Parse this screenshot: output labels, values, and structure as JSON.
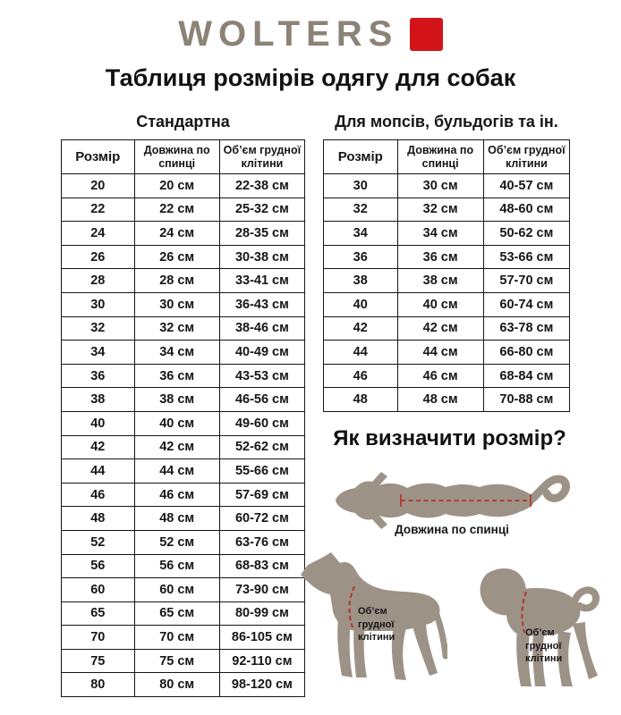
{
  "brand": {
    "name": "WOLTERS"
  },
  "page_title": "Таблиця розмірів одягу для собак",
  "standard_table": {
    "title": "Стандартна",
    "headers": [
      "Розмір",
      "Довжина по спинці",
      "Об’єм грудної клітини"
    ],
    "rows": [
      [
        "20",
        "20 см",
        "22-38 см"
      ],
      [
        "22",
        "22 см",
        "25-32 см"
      ],
      [
        "24",
        "24 см",
        "28-35 см"
      ],
      [
        "26",
        "26 см",
        "30-38 см"
      ],
      [
        "28",
        "28 см",
        "33-41 см"
      ],
      [
        "30",
        "30 см",
        "36-43 см"
      ],
      [
        "32",
        "32 см",
        "38-46 см"
      ],
      [
        "34",
        "34 см",
        "40-49 см"
      ],
      [
        "36",
        "36 см",
        "43-53 см"
      ],
      [
        "38",
        "38 см",
        "46-56 см"
      ],
      [
        "40",
        "40 см",
        "49-60 см"
      ],
      [
        "42",
        "42 см",
        "52-62 см"
      ],
      [
        "44",
        "44 см",
        "55-66 см"
      ],
      [
        "46",
        "46 см",
        "57-69 см"
      ],
      [
        "48",
        "48 см",
        "60-72 см"
      ],
      [
        "52",
        "52 см",
        "63-76 см"
      ],
      [
        "56",
        "56 см",
        "68-83 см"
      ],
      [
        "60",
        "60 см",
        "73-90 см"
      ],
      [
        "65",
        "65 см",
        "80-99 см"
      ],
      [
        "70",
        "70 см",
        "86-105 см"
      ],
      [
        "75",
        "75 см",
        "92-110 см"
      ],
      [
        "80",
        "80 см",
        "98-120 см"
      ]
    ]
  },
  "pug_table": {
    "title": "Для мопсів, бульдогів та ін.",
    "headers": [
      "Розмір",
      "Довжина по спинці",
      "Об’єм грудної клітини"
    ],
    "rows": [
      [
        "30",
        "30 см",
        "40-57 см"
      ],
      [
        "32",
        "32 см",
        "48-60 см"
      ],
      [
        "34",
        "34 см",
        "50-62 см"
      ],
      [
        "36",
        "36 см",
        "53-66 см"
      ],
      [
        "38",
        "38 см",
        "57-70 см"
      ],
      [
        "40",
        "40 см",
        "60-74 см"
      ],
      [
        "42",
        "42 см",
        "63-78 см"
      ],
      [
        "44",
        "44 см",
        "66-80 см"
      ],
      [
        "46",
        "46 см",
        "68-84 см"
      ],
      [
        "48",
        "48 см",
        "70-88 см"
      ]
    ]
  },
  "size_guide": {
    "title": "Як визначити розмір?",
    "back_length_label": "Довжина по спинці",
    "chest_label_dog1": "Об’єм грудної клітини",
    "chest_label_dog2": "Об’єм грудної клітини"
  },
  "colors": {
    "accent": "#d21419",
    "logo-text": "#8c8376",
    "silhouette": "#9d9286",
    "measure": "#b5332c",
    "text": "#161616"
  }
}
